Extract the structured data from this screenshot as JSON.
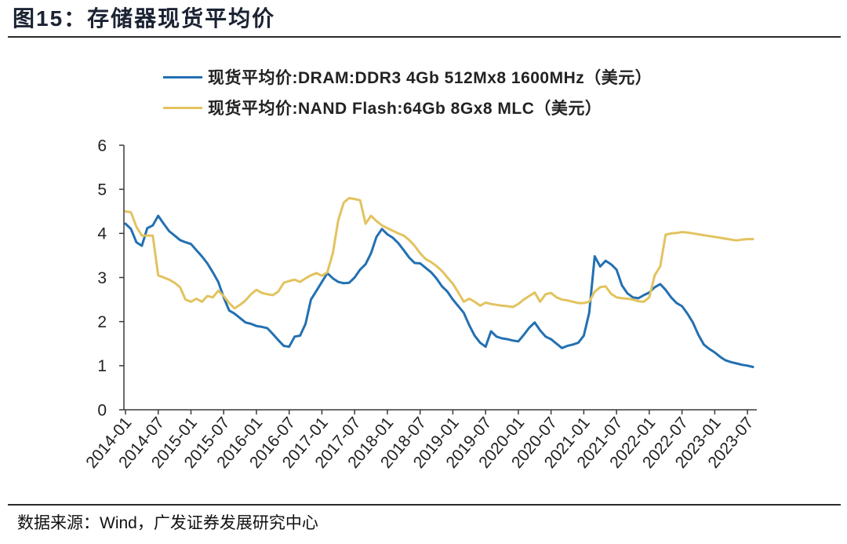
{
  "source": "数据来源：Wind，广发证券发展研究中心",
  "chart_data": {
    "type": "line",
    "title": "图15：存储器现货平均价",
    "xlabel": "",
    "ylabel": "",
    "ylim": [
      0,
      6
    ],
    "yticks": [
      0,
      1,
      2,
      3,
      4,
      5,
      6
    ],
    "xticks": [
      "2014-01",
      "2014-07",
      "2015-01",
      "2015-07",
      "2016-01",
      "2016-07",
      "2017-01",
      "2017-07",
      "2018-01",
      "2018-07",
      "2019-01",
      "2019-07",
      "2020-01",
      "2020-07",
      "2021-01",
      "2021-07",
      "2022-01",
      "2022-07",
      "2023-01",
      "2023-07"
    ],
    "x": [
      "2014-01",
      "2014-02",
      "2014-03",
      "2014-04",
      "2014-05",
      "2014-06",
      "2014-07",
      "2014-08",
      "2014-09",
      "2014-10",
      "2014-11",
      "2014-12",
      "2015-01",
      "2015-02",
      "2015-03",
      "2015-04",
      "2015-05",
      "2015-06",
      "2015-07",
      "2015-08",
      "2015-09",
      "2015-10",
      "2015-11",
      "2015-12",
      "2016-01",
      "2016-02",
      "2016-03",
      "2016-04",
      "2016-05",
      "2016-06",
      "2016-07",
      "2016-08",
      "2016-09",
      "2016-10",
      "2016-11",
      "2016-12",
      "2017-01",
      "2017-02",
      "2017-03",
      "2017-04",
      "2017-05",
      "2017-06",
      "2017-07",
      "2017-08",
      "2017-09",
      "2017-10",
      "2017-11",
      "2017-12",
      "2018-01",
      "2018-02",
      "2018-03",
      "2018-04",
      "2018-05",
      "2018-06",
      "2018-07",
      "2018-08",
      "2018-09",
      "2018-10",
      "2018-11",
      "2018-12",
      "2019-01",
      "2019-02",
      "2019-03",
      "2019-04",
      "2019-05",
      "2019-06",
      "2019-07",
      "2019-08",
      "2019-09",
      "2019-10",
      "2019-11",
      "2019-12",
      "2020-01",
      "2020-02",
      "2020-03",
      "2020-04",
      "2020-05",
      "2020-06",
      "2020-07",
      "2020-08",
      "2020-09",
      "2020-10",
      "2020-11",
      "2020-12",
      "2021-01",
      "2021-02",
      "2021-03",
      "2021-04",
      "2021-05",
      "2021-06",
      "2021-07",
      "2021-08",
      "2021-09",
      "2021-10",
      "2021-11",
      "2021-12",
      "2022-01",
      "2022-02",
      "2022-03",
      "2022-04",
      "2022-05",
      "2022-06",
      "2022-07",
      "2022-08",
      "2022-09",
      "2022-10",
      "2022-11",
      "2022-12",
      "2023-01",
      "2023-02",
      "2023-03",
      "2023-04",
      "2023-05",
      "2023-06",
      "2023-07",
      "2023-08"
    ],
    "series": [
      {
        "name": "现货平均价:DRAM:DDR3 4Gb 512Mx8 1600MHz（美元）",
        "color": "#2370b2",
        "values": [
          4.22,
          4.1,
          3.8,
          3.72,
          4.12,
          4.18,
          4.4,
          4.22,
          4.05,
          3.95,
          3.85,
          3.8,
          3.76,
          3.62,
          3.48,
          3.32,
          3.12,
          2.9,
          2.55,
          2.25,
          2.18,
          2.08,
          1.98,
          1.95,
          1.9,
          1.88,
          1.85,
          1.72,
          1.58,
          1.45,
          1.43,
          1.66,
          1.68,
          1.95,
          2.5,
          2.7,
          2.9,
          3.1,
          2.98,
          2.9,
          2.87,
          2.88,
          3.0,
          3.18,
          3.3,
          3.55,
          3.92,
          4.1,
          3.98,
          3.9,
          3.78,
          3.62,
          3.45,
          3.33,
          3.32,
          3.22,
          3.12,
          2.98,
          2.8,
          2.68,
          2.5,
          2.35,
          2.2,
          1.92,
          1.68,
          1.52,
          1.43,
          1.78,
          1.66,
          1.62,
          1.6,
          1.57,
          1.55,
          1.7,
          1.86,
          1.98,
          1.8,
          1.66,
          1.6,
          1.5,
          1.4,
          1.45,
          1.48,
          1.52,
          1.68,
          2.2,
          3.48,
          3.25,
          3.38,
          3.3,
          3.18,
          2.82,
          2.64,
          2.55,
          2.53,
          2.6,
          2.66,
          2.78,
          2.85,
          2.72,
          2.55,
          2.42,
          2.35,
          2.18,
          1.98,
          1.7,
          1.48,
          1.38,
          1.3,
          1.2,
          1.12,
          1.08,
          1.05,
          1.02,
          1.0,
          0.97
        ]
      },
      {
        "name": "现货平均价:NAND Flash:64Gb 8Gx8 MLC（美元）",
        "color": "#e2c35f",
        "values": [
          4.5,
          4.48,
          4.15,
          3.95,
          3.95,
          3.95,
          3.05,
          3.0,
          2.95,
          2.88,
          2.78,
          2.5,
          2.45,
          2.52,
          2.45,
          2.58,
          2.55,
          2.7,
          2.58,
          2.42,
          2.3,
          2.38,
          2.48,
          2.62,
          2.72,
          2.65,
          2.62,
          2.6,
          2.68,
          2.88,
          2.92,
          2.95,
          2.9,
          2.98,
          3.05,
          3.1,
          3.04,
          3.12,
          3.55,
          4.3,
          4.7,
          4.8,
          4.78,
          4.75,
          4.22,
          4.4,
          4.28,
          4.18,
          4.12,
          4.06,
          4.0,
          3.95,
          3.85,
          3.72,
          3.55,
          3.42,
          3.35,
          3.26,
          3.15,
          3.0,
          2.86,
          2.66,
          2.45,
          2.52,
          2.45,
          2.36,
          2.43,
          2.4,
          2.38,
          2.36,
          2.35,
          2.33,
          2.4,
          2.5,
          2.58,
          2.66,
          2.45,
          2.62,
          2.65,
          2.55,
          2.5,
          2.48,
          2.45,
          2.42,
          2.42,
          2.45,
          2.68,
          2.78,
          2.8,
          2.63,
          2.55,
          2.53,
          2.52,
          2.5,
          2.46,
          2.45,
          2.55,
          3.05,
          3.25,
          3.97,
          4.0,
          4.01,
          4.03,
          4.02,
          4.0,
          3.98,
          3.96,
          3.94,
          3.92,
          3.9,
          3.88,
          3.86,
          3.84,
          3.86,
          3.87,
          3.87
        ]
      }
    ]
  }
}
